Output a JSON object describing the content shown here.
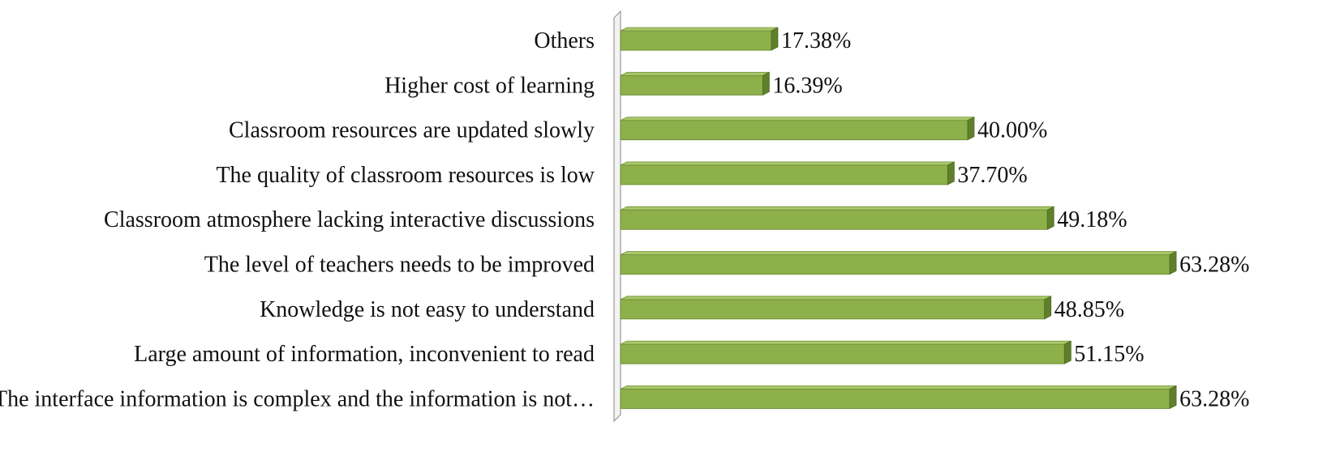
{
  "chart_data": {
    "type": "bar",
    "orientation": "horizontal",
    "style": "3d",
    "bar_color": "#8db04a",
    "bar_dark_color": "#5f7f2c",
    "categories": [
      "Others",
      "Higher cost of learning",
      "Classroom resources are updated slowly",
      "The quality of classroom resources is low",
      "Classroom atmosphere lacking interactive discussions",
      "The level of teachers needs to be improved",
      "Knowledge is not easy to understand",
      "Large amount of information, inconvenient to read",
      "The interface information is complex and the information is not…"
    ],
    "values": [
      17.38,
      16.39,
      40.0,
      37.7,
      49.18,
      63.28,
      48.85,
      51.15,
      63.28
    ],
    "value_labels": [
      "17.38%",
      "16.39%",
      "40.00%",
      "37.70%",
      "49.18%",
      "63.28%",
      "48.85%",
      "51.15%",
      "63.28%"
    ],
    "xlim": [
      0,
      70
    ],
    "grid": false,
    "legend": "none"
  }
}
